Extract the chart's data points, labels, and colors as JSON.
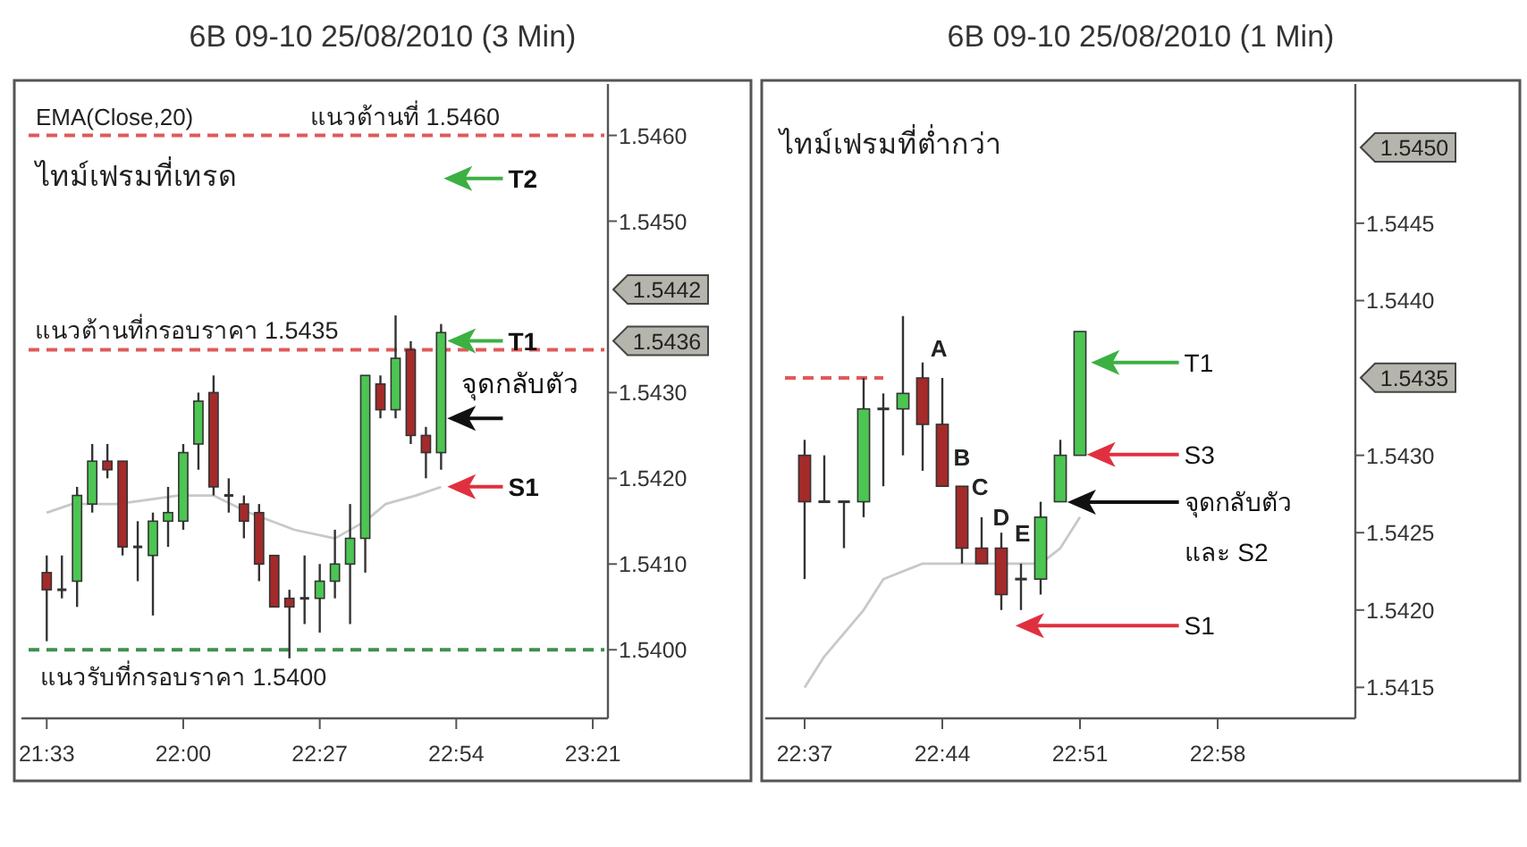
{
  "chart_data": [
    {
      "type": "candlestick",
      "title": "6B 09-10  25/08/2010 (3 Min)",
      "x": [
        "2010-08-25T21:33",
        "2010-08-25T21:36",
        "2010-08-25T21:39",
        "2010-08-25T21:42",
        "2010-08-25T21:45",
        "2010-08-25T21:48",
        "2010-08-25T21:51",
        "2010-08-25T21:54",
        "2010-08-25T21:57",
        "2010-08-25T22:00",
        "2010-08-25T22:03",
        "2010-08-25T22:06",
        "2010-08-25T22:09",
        "2010-08-25T22:12",
        "2010-08-25T22:15",
        "2010-08-25T22:18",
        "2010-08-25T22:21",
        "2010-08-25T22:24",
        "2010-08-25T22:27",
        "2010-08-25T22:30",
        "2010-08-25T22:33",
        "2010-08-25T22:36",
        "2010-08-25T22:39",
        "2010-08-25T22:42",
        "2010-08-25T22:45",
        "2010-08-25T22:48",
        "2010-08-25T22:51"
      ],
      "ohlc": [
        [
          1.5409,
          1.5411,
          1.5401,
          1.5407
        ],
        [
          1.5407,
          1.5411,
          1.5406,
          1.5407
        ],
        [
          1.5408,
          1.5419,
          1.5405,
          1.5418
        ],
        [
          1.5417,
          1.5424,
          1.5416,
          1.5422
        ],
        [
          1.5422,
          1.5424,
          1.542,
          1.5421
        ],
        [
          1.5422,
          1.5422,
          1.5411,
          1.5412
        ],
        [
          1.5412,
          1.5415,
          1.5408,
          1.5412
        ],
        [
          1.5411,
          1.5416,
          1.5404,
          1.5415
        ],
        [
          1.5415,
          1.5419,
          1.5412,
          1.5416
        ],
        [
          1.5415,
          1.5424,
          1.5414,
          1.5423
        ],
        [
          1.5424,
          1.543,
          1.5421,
          1.5429
        ],
        [
          1.543,
          1.5432,
          1.5418,
          1.5419
        ],
        [
          1.5418,
          1.542,
          1.5416,
          1.5418
        ],
        [
          1.5417,
          1.5418,
          1.5413,
          1.5415
        ],
        [
          1.5416,
          1.5417,
          1.5408,
          1.541
        ],
        [
          1.5411,
          1.5411,
          1.5405,
          1.5405
        ],
        [
          1.5406,
          1.5407,
          1.5399,
          1.5405
        ],
        [
          1.5406,
          1.5411,
          1.5403,
          1.5406
        ],
        [
          1.5406,
          1.541,
          1.5402,
          1.5408
        ],
        [
          1.5408,
          1.5414,
          1.5406,
          1.541
        ],
        [
          1.541,
          1.5417,
          1.5403,
          1.5413
        ],
        [
          1.5413,
          1.5432,
          1.5409,
          1.5432
        ],
        [
          1.5431,
          1.5432,
          1.5427,
          1.5428
        ],
        [
          1.5428,
          1.5439,
          1.5427,
          1.5434
        ],
        [
          1.5435,
          1.5436,
          1.5424,
          1.5425
        ],
        [
          1.5425,
          1.5426,
          1.542,
          1.5423
        ],
        [
          1.5423,
          1.5438,
          1.5421,
          1.5437
        ]
      ],
      "series": [
        {
          "type": "line",
          "color": "#c8c8c8",
          "x": [
            "2010-08-25T21:33",
            "2010-08-25T21:38",
            "2010-08-25T21:47",
            "2010-08-25T21:59",
            "2010-08-25T22:06",
            "2010-08-25T22:13",
            "2010-08-25T22:22",
            "2010-08-25T22:30",
            "2010-08-25T22:36",
            "2010-08-25T22:40",
            "2010-08-25T22:46",
            "2010-08-25T22:51"
          ],
          "values": [
            1.5416,
            1.5417,
            1.5417,
            1.5418,
            1.5418,
            1.5416,
            1.5414,
            1.5413,
            1.5415,
            1.5417,
            1.5418,
            1.5419
          ]
        }
      ],
      "xlim": [
        "2010-08-25T21:28",
        "2010-08-25T23:24"
      ],
      "xticks": [
        {
          "value": "2010-08-25T21:33",
          "label": "21:33"
        },
        {
          "value": "2010-08-25T22:00",
          "label": "22:00"
        },
        {
          "value": "2010-08-25T22:27",
          "label": "22:27"
        },
        {
          "value": "2010-08-25T22:54",
          "label": "22:54"
        },
        {
          "value": "2010-08-25T23:21",
          "label": "23:21"
        }
      ],
      "ylim": [
        1.5392,
        1.5466
      ],
      "yticks": [
        {
          "value": 1.546,
          "label": "1.5460"
        },
        {
          "value": 1.545,
          "label": "1.5450"
        },
        {
          "value": 1.543,
          "label": "1.5430"
        },
        {
          "value": 1.542,
          "label": "1.5420"
        },
        {
          "value": 1.541,
          "label": "1.5410"
        },
        {
          "value": 1.54,
          "label": "1.5400"
        }
      ],
      "ref_lines": [
        {
          "axis": "y",
          "value": 1.546,
          "label": "แนวต้านที่ 1.5460",
          "color": "#e05a5a",
          "line_style": "dashed"
        },
        {
          "axis": "y",
          "value": 1.5435,
          "label": "แนวต้านที่กรอบราคา 1.5435",
          "color": "#e05a5a",
          "line_style": "dashed"
        },
        {
          "axis": "y",
          "value": 1.54,
          "label": "แนวรับที่กรอบราคา 1.5400",
          "color": "#3f8f4f",
          "line_style": "dashed"
        }
      ],
      "annotations": [
        "EMA(Close,20)",
        "ไทม์เฟรมที่เทรด",
        "T2",
        "T1",
        "จุดกลับตัว",
        "S1",
        "1.5442",
        "1.5436"
      ]
    },
    {
      "type": "candlestick",
      "title": "6B 09-10  25/08/2010 (1 Min)",
      "x": [
        "2010-08-25T22:37",
        "2010-08-25T22:38",
        "2010-08-25T22:39",
        "2010-08-25T22:40",
        "2010-08-25T22:41",
        "2010-08-25T22:42",
        "2010-08-25T22:43",
        "2010-08-25T22:44",
        "2010-08-25T22:45",
        "2010-08-25T22:46",
        "2010-08-25T22:47",
        "2010-08-25T22:48",
        "2010-08-25T22:49",
        "2010-08-25T22:50",
        "2010-08-25T22:51"
      ],
      "ohlc": [
        [
          1.543,
          1.5431,
          1.5422,
          1.5427
        ],
        [
          1.5427,
          1.543,
          1.5427,
          1.5427
        ],
        [
          1.5427,
          1.5427,
          1.5424,
          1.5427
        ],
        [
          1.5427,
          1.5435,
          1.5426,
          1.5433
        ],
        [
          1.5433,
          1.5434,
          1.5428,
          1.5433
        ],
        [
          1.5433,
          1.5439,
          1.543,
          1.5434
        ],
        [
          1.5435,
          1.5436,
          1.5429,
          1.5432
        ],
        [
          1.5432,
          1.5435,
          1.5428,
          1.5428
        ],
        [
          1.5428,
          1.5428,
          1.5423,
          1.5424
        ],
        [
          1.5424,
          1.5426,
          1.5423,
          1.5423
        ],
        [
          1.5424,
          1.5425,
          1.542,
          1.5421
        ],
        [
          1.5422,
          1.5423,
          1.542,
          1.5422
        ],
        [
          1.5422,
          1.5427,
          1.5421,
          1.5426
        ],
        [
          1.5427,
          1.5431,
          1.5427,
          1.543
        ],
        [
          1.543,
          1.5438,
          1.543,
          1.5438
        ]
      ],
      "series": [
        {
          "type": "line",
          "color": "#c8c8c8",
          "x": [
            "2010-08-25T22:37",
            "2010-08-25T22:38",
            "2010-08-25T22:40",
            "2010-08-25T22:41",
            "2010-08-25T22:43",
            "2010-08-25T22:45",
            "2010-08-25T22:47",
            "2010-08-25T22:49",
            "2010-08-25T22:50",
            "2010-08-25T22:51"
          ],
          "values": [
            1.5415,
            1.5417,
            1.542,
            1.5422,
            1.5423,
            1.5423,
            1.5423,
            1.5423,
            1.5424,
            1.5426
          ]
        },
        {
          "type": "line",
          "color": "#e05a5a",
          "line_style": "dashed",
          "x": [
            "2010-08-25T22:36",
            "2010-08-25T22:41"
          ],
          "values": [
            1.5435,
            1.5435
          ]
        }
      ],
      "xlim": [
        "2010-08-25T22:35",
        "2010-08-25T23:05"
      ],
      "xticks": [
        {
          "value": "2010-08-25T22:37",
          "label": "22:37"
        },
        {
          "value": "2010-08-25T22:44",
          "label": "22:44"
        },
        {
          "value": "2010-08-25T22:51",
          "label": "22:51"
        },
        {
          "value": "2010-08-25T22:58",
          "label": "22:58"
        }
      ],
      "ylim": [
        1.5413,
        1.5454
      ],
      "yticks": [
        {
          "value": 1.5445,
          "label": "1.5445"
        },
        {
          "value": 1.544,
          "label": "1.5440"
        },
        {
          "value": 1.543,
          "label": "1.5430"
        },
        {
          "value": 1.5425,
          "label": "1.5425"
        },
        {
          "value": 1.542,
          "label": "1.5420"
        },
        {
          "value": 1.5415,
          "label": "1.5415"
        }
      ],
      "annotations": [
        "ไทม์เฟรมที่ต่ำกว่า",
        "A",
        "B",
        "C",
        "D",
        "E",
        "T1",
        "S3",
        "จุดกลับตัว\nและ S2",
        "S1",
        "1.5450",
        "1.5435"
      ]
    }
  ]
}
